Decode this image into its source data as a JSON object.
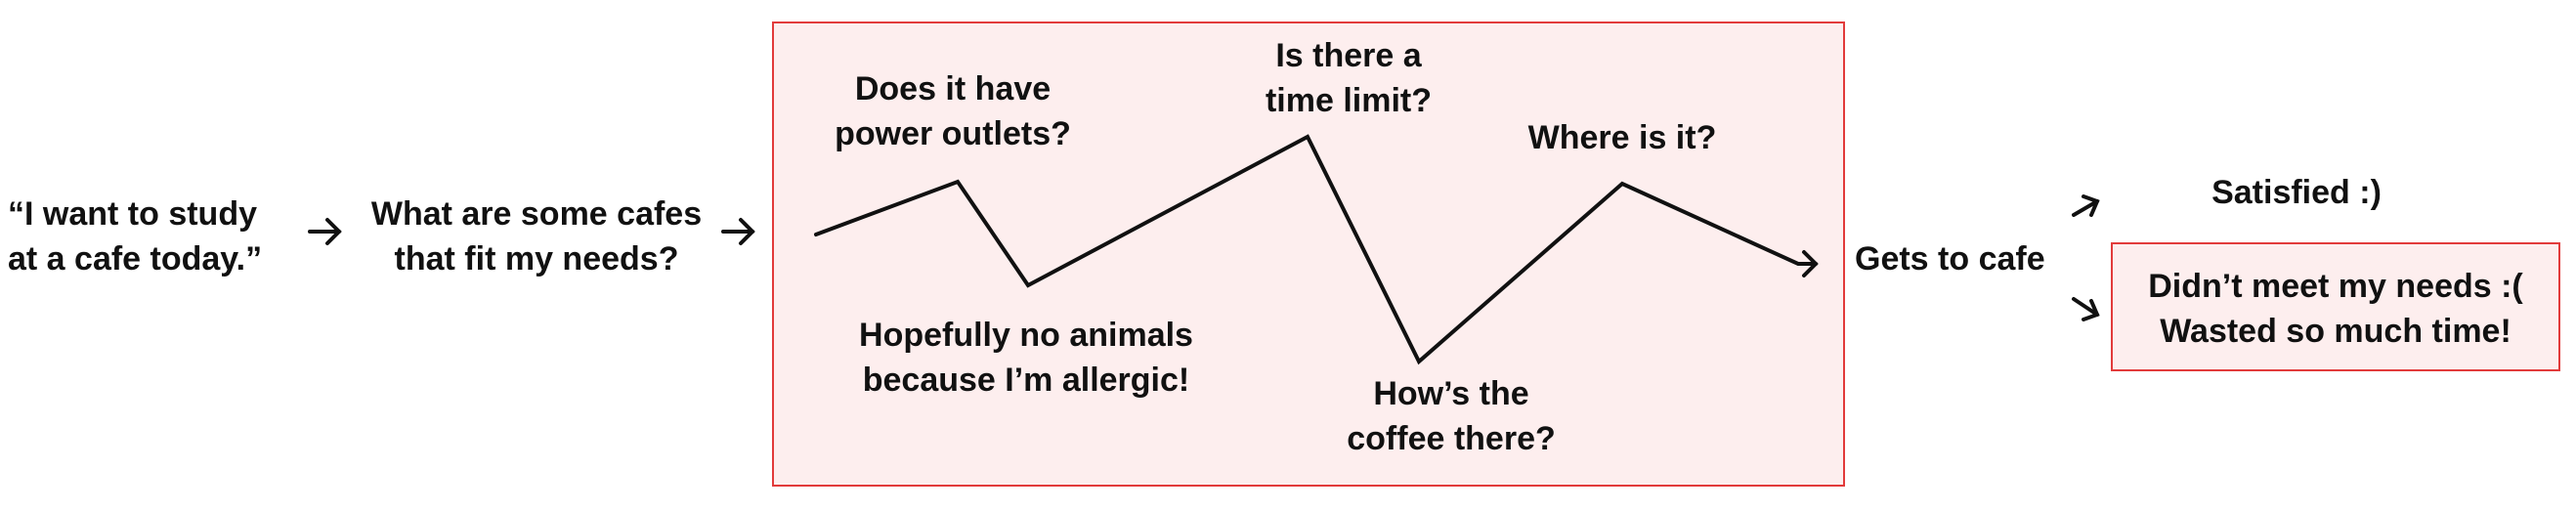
{
  "start_quote": {
    "line1": "“I want to study",
    "line2": "at a cafe today.”"
  },
  "search_question": {
    "line1": "What are some cafes",
    "line2": "that fit my needs?"
  },
  "concerns": {
    "power_outlets": {
      "line1": "Does it have",
      "line2": "power outlets?"
    },
    "time_limit": {
      "line1": "Is there a",
      "line2": "time limit?"
    },
    "location": {
      "line1": "Where is it?"
    },
    "animals": {
      "line1": "Hopefully no animals",
      "line2": "because I’m allergic!"
    },
    "coffee": {
      "line1": "How’s the",
      "line2": "coffee there?"
    }
  },
  "gets_to_cafe": "Gets to cafe",
  "outcomes": {
    "satisfied": "Satisfied :)",
    "unsatisfied": {
      "line1": "Didn’t meet my needs :(",
      "line2": "Wasted so much time!"
    }
  },
  "colors": {
    "highlight_fill": "#fdeeee",
    "highlight_border": "#e23b3b",
    "text": "#111111"
  }
}
